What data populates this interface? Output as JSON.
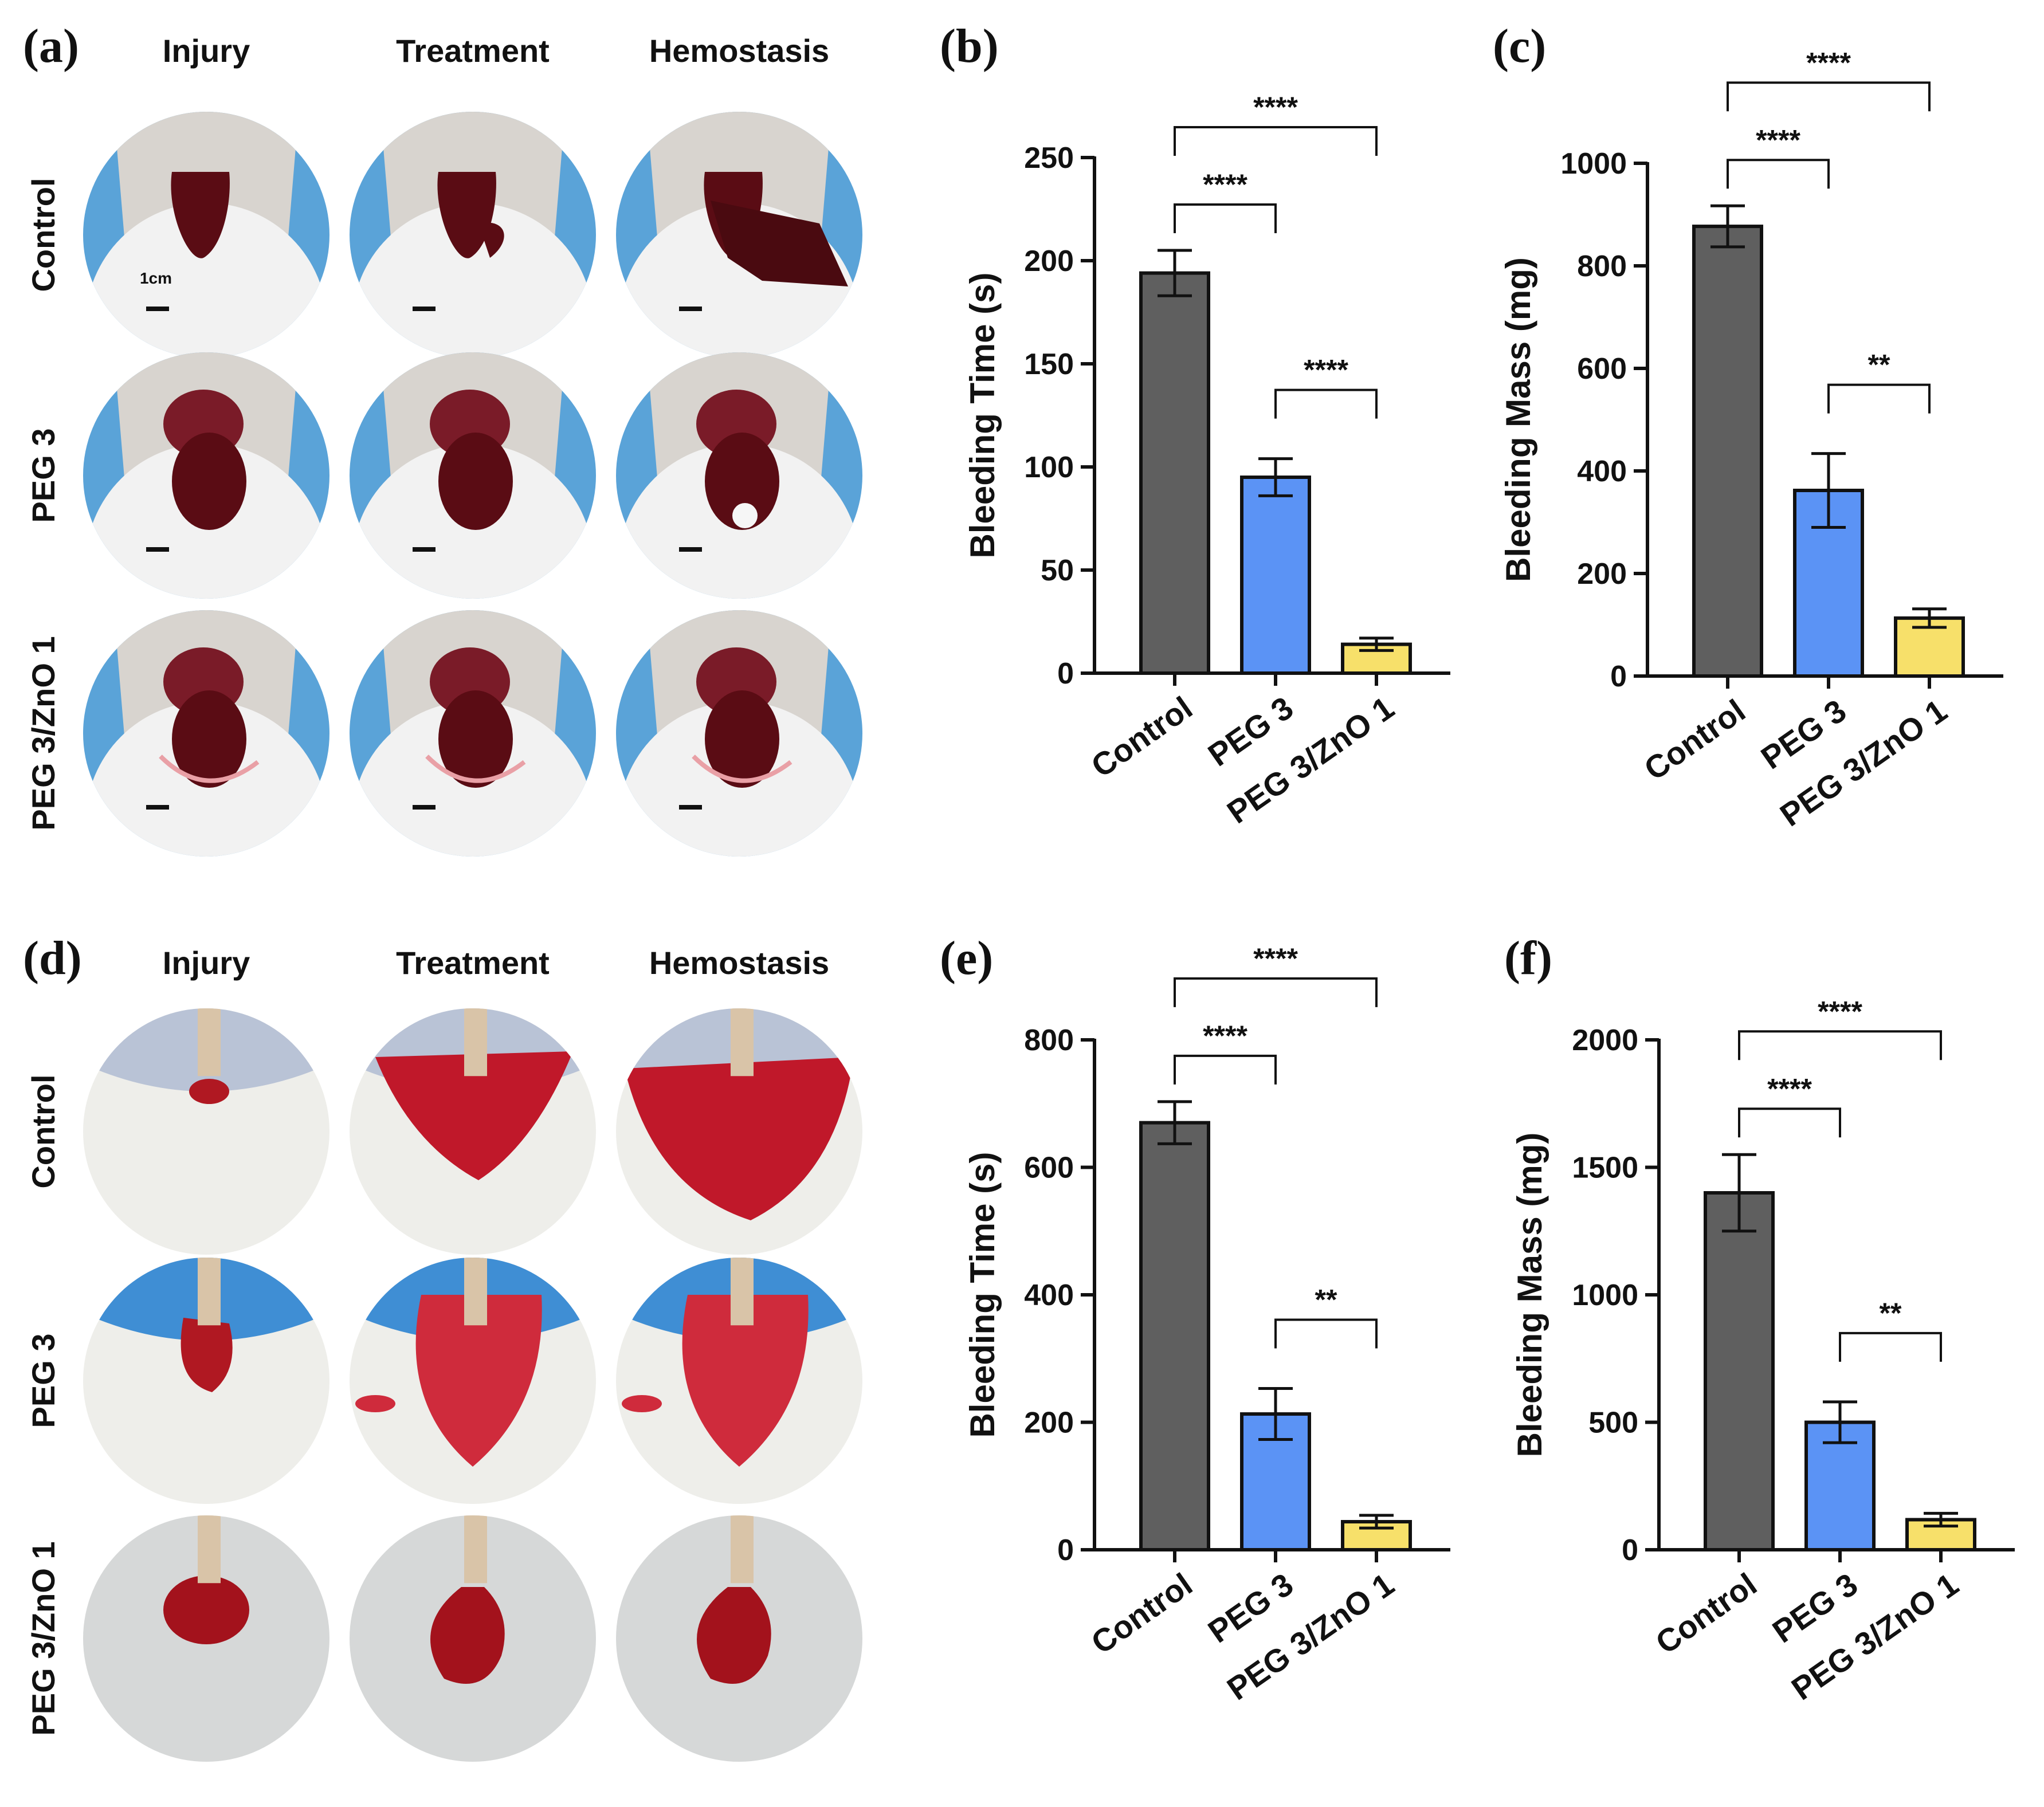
{
  "photo_panels": [
    {
      "label": "(a)",
      "columns": [
        "Injury",
        "Treatment",
        "Hemostasis"
      ],
      "rows": [
        "Control",
        "PEG 3",
        "PEG 3/ZnO 1"
      ],
      "scale_bar_label": "1cm",
      "model": "liver"
    },
    {
      "label": "(d)",
      "columns": [
        "Injury",
        "Treatment",
        "Hemostasis"
      ],
      "rows": [
        "Control",
        "PEG 3",
        "PEG 3/ZnO 1"
      ],
      "model": "tail"
    }
  ],
  "colors": {
    "control_bar": "#5f5f5f",
    "peg3_bar": "#5b93f5",
    "pegzno_bar": "#f7e06a",
    "ink": "#111111",
    "blood_dark": "#5a0c14",
    "blood_red": "#b01822"
  },
  "chart_data": [
    {
      "type": "bar",
      "label": "(b)",
      "categories": [
        "Control",
        "PEG 3",
        "PEG 3/ZnO 1"
      ],
      "values": [
        194,
        95,
        14
      ],
      "errors": [
        11,
        9,
        3
      ],
      "ylabel": "Bleeding Time (s)",
      "ylim": [
        0,
        250
      ],
      "yticks": [
        0,
        50,
        100,
        150,
        200,
        250
      ],
      "significance": [
        {
          "from": 0,
          "to": 1,
          "text": "****",
          "level": 2
        },
        {
          "from": 0,
          "to": 2,
          "text": "****",
          "level": 3
        },
        {
          "from": 1,
          "to": 2,
          "text": "****",
          "level": 1
        }
      ]
    },
    {
      "type": "bar",
      "label": "(c)",
      "categories": [
        "Control",
        "PEG 3",
        "PEG 3/ZnO 1"
      ],
      "values": [
        877,
        362,
        113
      ],
      "errors": [
        40,
        72,
        18
      ],
      "ylabel": "Bleeding Mass (mg)",
      "ylim": [
        0,
        1000
      ],
      "yticks": [
        0,
        200,
        400,
        600,
        800,
        1000
      ],
      "significance": [
        {
          "from": 0,
          "to": 1,
          "text": "****",
          "level": 2
        },
        {
          "from": 0,
          "to": 2,
          "text": "****",
          "level": 3
        },
        {
          "from": 1,
          "to": 2,
          "text": "**",
          "level": 1
        }
      ]
    },
    {
      "type": "bar",
      "label": "(e)",
      "categories": [
        "Control",
        "PEG 3",
        "PEG 3/ZnO 1"
      ],
      "values": [
        670,
        213,
        44
      ],
      "errors": [
        33,
        40,
        10
      ],
      "ylabel": "Bleeding Time (s)",
      "ylim": [
        0,
        800
      ],
      "yticks": [
        0,
        200,
        400,
        600,
        800
      ],
      "significance": [
        {
          "from": 0,
          "to": 1,
          "text": "****",
          "level": 2
        },
        {
          "from": 0,
          "to": 2,
          "text": "****",
          "level": 3
        },
        {
          "from": 1,
          "to": 2,
          "text": "**",
          "level": 1
        }
      ]
    },
    {
      "type": "bar",
      "label": "(f)",
      "categories": [
        "Control",
        "PEG 3",
        "PEG 3/ZnO 1"
      ],
      "values": [
        1400,
        500,
        118
      ],
      "errors": [
        150,
        80,
        25
      ],
      "ylabel": "Bleeding Mass (mg)",
      "ylim": [
        0,
        2000
      ],
      "yticks": [
        0,
        500,
        1000,
        1500,
        2000
      ],
      "significance": [
        {
          "from": 0,
          "to": 1,
          "text": "****",
          "level": 2
        },
        {
          "from": 0,
          "to": 2,
          "text": "****",
          "level": 3
        },
        {
          "from": 1,
          "to": 2,
          "text": "**",
          "level": 1
        }
      ]
    }
  ]
}
